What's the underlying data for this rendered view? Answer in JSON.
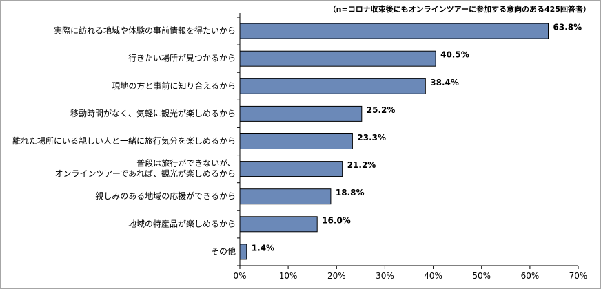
{
  "chart_data": {
    "type": "bar",
    "orientation": "horizontal",
    "note": "（n=コロナ収束後にもオンラインツアーに参加する意向のある425回答者）",
    "categories": [
      [
        "実際に訪れる地域や体験の事前情報を得たいから"
      ],
      [
        "行きたい場所が見つかるから"
      ],
      [
        "現地の方と事前に知り合えるから"
      ],
      [
        "移動時間がなく、気軽に観光が楽しめるから"
      ],
      [
        "離れた場所にいる親しい人と一緒に旅行気分を楽しめるから"
      ],
      [
        "普段は旅行ができないが、",
        "オンラインツアーであれば、観光が楽しめるから"
      ],
      [
        "親しみのある地域の応援ができるから"
      ],
      [
        "地域の特産品が楽しめるから"
      ],
      [
        "その他"
      ]
    ],
    "values": [
      63.8,
      40.5,
      38.4,
      25.2,
      23.3,
      21.2,
      18.8,
      16.0,
      1.4
    ],
    "value_labels": [
      "63.8%",
      "40.5%",
      "38.4%",
      "25.2%",
      "23.3%",
      "21.2%",
      "18.8%",
      "16.0%",
      "1.4%"
    ],
    "xlim": [
      0,
      70
    ],
    "x_ticks": [
      0,
      10,
      20,
      30,
      40,
      50,
      60,
      70
    ],
    "x_tick_labels": [
      "0%",
      "10%",
      "20%",
      "30%",
      "40%",
      "50%",
      "60%",
      "70%"
    ],
    "grid": false,
    "legend": "none",
    "bar_color": "#6b89b8"
  }
}
